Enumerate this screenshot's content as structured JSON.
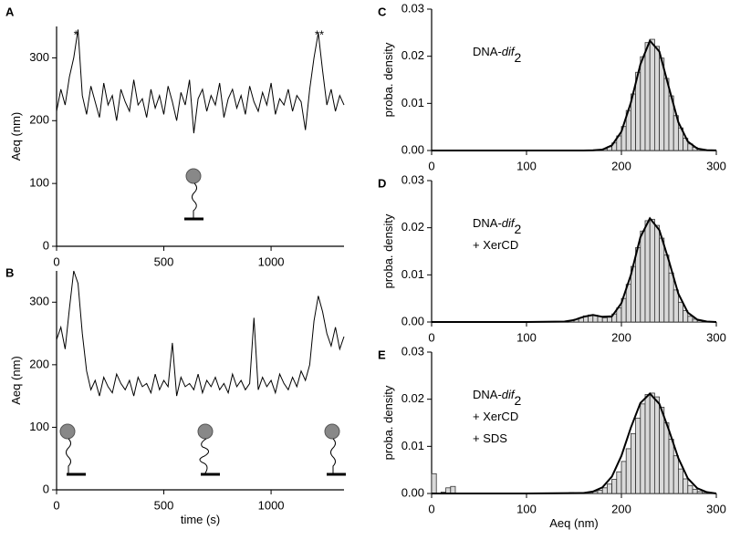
{
  "chart_data": [
    {
      "type": "line",
      "panel": "A",
      "ylabel": "Aeq (nm)",
      "annotations": [
        "*",
        "**"
      ],
      "annotation_x": [
        90,
        1225
      ],
      "color": "#000000",
      "xlim": [
        0,
        1340
      ],
      "xticks": [
        0,
        500,
        1000
      ],
      "ylim": [
        0,
        350
      ],
      "yticks": [
        0,
        100,
        200,
        300
      ],
      "x": [
        0,
        20,
        40,
        60,
        80,
        100,
        120,
        140,
        160,
        180,
        200,
        220,
        240,
        260,
        280,
        300,
        320,
        340,
        360,
        380,
        400,
        420,
        440,
        460,
        480,
        500,
        520,
        540,
        560,
        580,
        600,
        620,
        640,
        660,
        680,
        700,
        720,
        740,
        760,
        780,
        800,
        820,
        840,
        860,
        880,
        900,
        920,
        940,
        960,
        980,
        1000,
        1020,
        1040,
        1060,
        1080,
        1100,
        1120,
        1140,
        1160,
        1180,
        1200,
        1220,
        1240,
        1260,
        1280,
        1300,
        1320,
        1340
      ],
      "values": [
        215,
        250,
        225,
        270,
        300,
        345,
        240,
        210,
        255,
        230,
        205,
        260,
        225,
        240,
        200,
        250,
        230,
        215,
        265,
        225,
        235,
        205,
        250,
        220,
        240,
        210,
        255,
        230,
        200,
        245,
        225,
        265,
        180,
        235,
        250,
        215,
        240,
        225,
        260,
        205,
        235,
        250,
        220,
        240,
        210,
        255,
        230,
        215,
        245,
        225,
        260,
        210,
        235,
        225,
        250,
        215,
        240,
        230,
        185,
        250,
        300,
        340,
        280,
        225,
        250,
        215,
        240,
        225
      ]
    },
    {
      "type": "line",
      "panel": "B",
      "ylabel": "Aeq (nm)",
      "xlabel": "time (s)",
      "color": "#000000",
      "xlim": [
        0,
        1340
      ],
      "xticks": [
        0,
        500,
        1000
      ],
      "ylim": [
        0,
        350
      ],
      "yticks": [
        0,
        100,
        200,
        300
      ],
      "x": [
        0,
        20,
        40,
        60,
        80,
        100,
        120,
        140,
        160,
        180,
        200,
        220,
        240,
        260,
        280,
        300,
        320,
        340,
        360,
        380,
        400,
        420,
        440,
        460,
        480,
        500,
        520,
        540,
        560,
        580,
        600,
        620,
        640,
        660,
        680,
        700,
        720,
        740,
        760,
        780,
        800,
        820,
        840,
        860,
        880,
        900,
        920,
        940,
        960,
        980,
        1000,
        1020,
        1040,
        1060,
        1080,
        1100,
        1120,
        1140,
        1160,
        1180,
        1200,
        1220,
        1240,
        1260,
        1280,
        1300,
        1320,
        1340
      ],
      "values": [
        240,
        260,
        225,
        290,
        350,
        330,
        250,
        190,
        160,
        175,
        150,
        180,
        165,
        155,
        185,
        170,
        160,
        175,
        150,
        180,
        165,
        170,
        155,
        185,
        160,
        175,
        165,
        235,
        150,
        180,
        165,
        170,
        160,
        185,
        155,
        175,
        165,
        180,
        160,
        170,
        155,
        185,
        165,
        175,
        160,
        170,
        275,
        160,
        180,
        165,
        175,
        155,
        185,
        170,
        160,
        180,
        165,
        190,
        175,
        200,
        270,
        310,
        285,
        250,
        230,
        260,
        225,
        245
      ]
    },
    {
      "type": "histogram",
      "panel": "C",
      "ylabel": "proba. density",
      "label": [
        [
          "DNA-",
          "dif",
          "2"
        ]
      ],
      "color": "#d9d9d9",
      "line_color": "#000000",
      "xlim": [
        0,
        300
      ],
      "xticks": [
        0,
        100,
        200,
        300
      ],
      "ylim": [
        0,
        0.03
      ],
      "yticks": [
        {
          "value": 0,
          "label": "0.00"
        },
        {
          "value": 0.01,
          "label": "0.01"
        },
        {
          "value": 0.02,
          "label": "0.02"
        },
        {
          "value": 0.03,
          "label": "0.03"
        }
      ],
      "bins": [
        160,
        165,
        170,
        175,
        180,
        185,
        190,
        195,
        200,
        205,
        210,
        215,
        220,
        225,
        230,
        235,
        240,
        245,
        250,
        255,
        260,
        265,
        270,
        275,
        280,
        285,
        290,
        295,
        300
      ],
      "values": [
        0,
        2e-05,
        5e-05,
        0.00014,
        0.00034,
        0.0008,
        0.0016,
        0.0031,
        0.0051,
        0.0085,
        0.012,
        0.0166,
        0.0199,
        0.0229,
        0.0236,
        0.0221,
        0.0196,
        0.0153,
        0.0116,
        0.0074,
        0.0048,
        0.0026,
        0.0014,
        0.0007,
        0.0003,
        0.0001,
        4e-05,
        1e-05
      ],
      "fit_x": [
        0,
        100,
        150,
        160,
        170,
        180,
        190,
        200,
        210,
        220,
        230,
        240,
        250,
        260,
        270,
        280,
        290,
        300
      ],
      "fit_values": [
        0,
        0,
        0,
        0,
        3e-05,
        0.0002,
        0.0011,
        0.004,
        0.0102,
        0.0183,
        0.0233,
        0.021,
        0.0134,
        0.006,
        0.0019,
        0.0004,
        7e-05,
        1e-05
      ]
    },
    {
      "type": "histogram",
      "panel": "D",
      "ylabel": "proba. density",
      "label": [
        [
          "DNA-",
          "dif",
          "2"
        ],
        [
          "+ XerCD"
        ]
      ],
      "color": "#d9d9d9",
      "line_color": "#000000",
      "xlim": [
        0,
        300
      ],
      "xticks": [
        0,
        100,
        200,
        300
      ],
      "ylim": [
        0,
        0.03
      ],
      "yticks": [
        {
          "value": 0,
          "label": "0.00"
        },
        {
          "value": 0.01,
          "label": "0.01"
        },
        {
          "value": 0.02,
          "label": "0.02"
        },
        {
          "value": 0.03,
          "label": "0.03"
        }
      ],
      "bins": [
        145,
        150,
        155,
        160,
        165,
        170,
        175,
        180,
        185,
        190,
        195,
        200,
        205,
        210,
        215,
        220,
        225,
        230,
        235,
        240,
        245,
        250,
        255,
        260,
        265,
        270,
        275,
        280,
        285,
        290,
        295,
        300
      ],
      "values": [
        0.0003,
        0.0006,
        0.0009,
        0.0013,
        0.0015,
        0.0014,
        0.0012,
        0.0009,
        0.001,
        0.0017,
        0.003,
        0.005,
        0.008,
        0.0118,
        0.0158,
        0.0193,
        0.0215,
        0.0218,
        0.0205,
        0.0178,
        0.0142,
        0.0104,
        0.0068,
        0.0042,
        0.0024,
        0.0012,
        0.0006,
        0.0003,
        0.0001,
        0.0001,
        0
      ],
      "fit_x": [
        0,
        100,
        140,
        150,
        160,
        170,
        180,
        190,
        200,
        210,
        220,
        230,
        240,
        250,
        260,
        270,
        280,
        290,
        300
      ],
      "fit_values": [
        0,
        0,
        0.0001,
        0.0004,
        0.0011,
        0.0015,
        0.0011,
        0.0012,
        0.004,
        0.01,
        0.018,
        0.022,
        0.0195,
        0.013,
        0.006,
        0.002,
        0.0005,
        0.0001,
        0
      ]
    },
    {
      "type": "histogram",
      "panel": "E",
      "ylabel": "proba. density",
      "xlabel": "Aeq (nm)",
      "label": [
        [
          "DNA-",
          "dif",
          "2"
        ],
        [
          "+ XerCD"
        ],
        [
          "+ SDS"
        ]
      ],
      "color": "#d9d9d9",
      "line_color": "#000000",
      "xlim": [
        0,
        300
      ],
      "xticks": [
        0,
        100,
        200,
        300
      ],
      "ylim": [
        0,
        0.03
      ],
      "yticks": [
        {
          "value": 0,
          "label": "0.00"
        },
        {
          "value": 0.01,
          "label": "0.01"
        },
        {
          "value": 0.02,
          "label": "0.02"
        },
        {
          "value": 0.03,
          "label": "0.03"
        }
      ],
      "bins": [
        0,
        5,
        10,
        15,
        20,
        25,
        30,
        35,
        40,
        45,
        50,
        55,
        60,
        65,
        70,
        75,
        80,
        85,
        90,
        95,
        100,
        105,
        110,
        115,
        120,
        125,
        130,
        135,
        140,
        145,
        150,
        155,
        160,
        165,
        170,
        175,
        180,
        185,
        190,
        195,
        200,
        205,
        210,
        215,
        220,
        225,
        230,
        235,
        240,
        245,
        250,
        255,
        260,
        265,
        270,
        275,
        280,
        285,
        290,
        295,
        300
      ],
      "values": [
        0.0042,
        0,
        0.0003,
        0.0012,
        0.0015,
        0,
        0,
        0,
        0,
        0,
        0,
        0,
        0,
        0,
        0,
        0,
        0,
        0,
        0,
        0,
        0,
        0,
        0,
        0,
        0,
        0,
        0,
        0,
        0,
        0.0002,
        0,
        0,
        0.0001,
        0.0002,
        0.0004,
        0.0007,
        0.0012,
        0.002,
        0.003,
        0.0046,
        0.0068,
        0.0095,
        0.0127,
        0.016,
        0.019,
        0.021,
        0.0213,
        0.0205,
        0.0183,
        0.015,
        0.0115,
        0.008,
        0.0052,
        0.0031,
        0.0017,
        0.0009,
        0.0004,
        0.0002,
        0.0001,
        0
      ],
      "fit_x": [
        0,
        100,
        160,
        170,
        180,
        190,
        200,
        210,
        220,
        230,
        240,
        250,
        260,
        270,
        280,
        290,
        300
      ],
      "fit_values": [
        0,
        0,
        0.0001,
        0.0004,
        0.0013,
        0.0036,
        0.008,
        0.014,
        0.0192,
        0.0212,
        0.019,
        0.0135,
        0.0075,
        0.0032,
        0.0011,
        0.0003,
        0
      ]
    }
  ]
}
